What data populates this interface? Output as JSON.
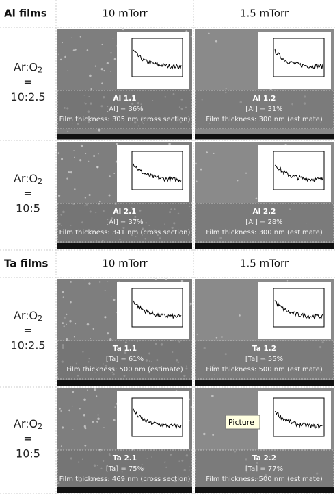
{
  "sections": [
    {
      "title": "Al films",
      "columns": [
        "10 mTorr",
        "1.5 mTorr"
      ],
      "rows": [
        {
          "label": {
            "prefix": "Ar:O",
            "sub": "2",
            "equals": "=",
            "ratio": "10:2.5"
          },
          "cells": [
            {
              "name": "Al 1.1",
              "composition": "[Al] = 36%",
              "thickness": "Film thickness: 305 nm (cross section)"
            },
            {
              "name": "Al 1.2",
              "composition": "[Al] = 31%",
              "thickness": "Film thickness: 300 nm (estimate)"
            }
          ]
        },
        {
          "label": {
            "prefix": "Ar:O",
            "sub": "2",
            "equals": "=",
            "ratio": "10:5"
          },
          "cells": [
            {
              "name": "Al 2.1",
              "composition": "[Al] = 37%",
              "thickness": "Film thickness: 341 nm (cross section)"
            },
            {
              "name": "Al 2.2",
              "composition": "[Al] = 28%",
              "thickness": "Film thickness: 300 nm (estimate)"
            }
          ]
        }
      ]
    },
    {
      "title": "Ta films",
      "columns": [
        "10 mTorr",
        "1.5 mTorr"
      ],
      "rows": [
        {
          "label": {
            "prefix": "Ar:O",
            "sub": "2",
            "equals": "=",
            "ratio": "10:2.5"
          },
          "cells": [
            {
              "name": "Ta 1.1",
              "composition": "[Ta] = 61%",
              "thickness": "Film thickness: 500 nm (estimate)"
            },
            {
              "name": "Ta 1.2",
              "composition": "[Ta] = 55%",
              "thickness": "Film thickness: 500 nm (estimate)"
            }
          ]
        },
        {
          "label": {
            "prefix": "Ar:O",
            "sub": "2",
            "equals": "=",
            "ratio": "10:5"
          },
          "cells": [
            {
              "name": "Ta 2.1",
              "composition": "[Ta] = 75%",
              "thickness": "Film thickness: 469 nm (cross section)"
            },
            {
              "name": "Ta 2.2",
              "composition": "[Ta] = 77%",
              "thickness": "Film thickness: 500 nm (estimate)"
            }
          ]
        }
      ]
    }
  ],
  "tooltip": "Picture"
}
